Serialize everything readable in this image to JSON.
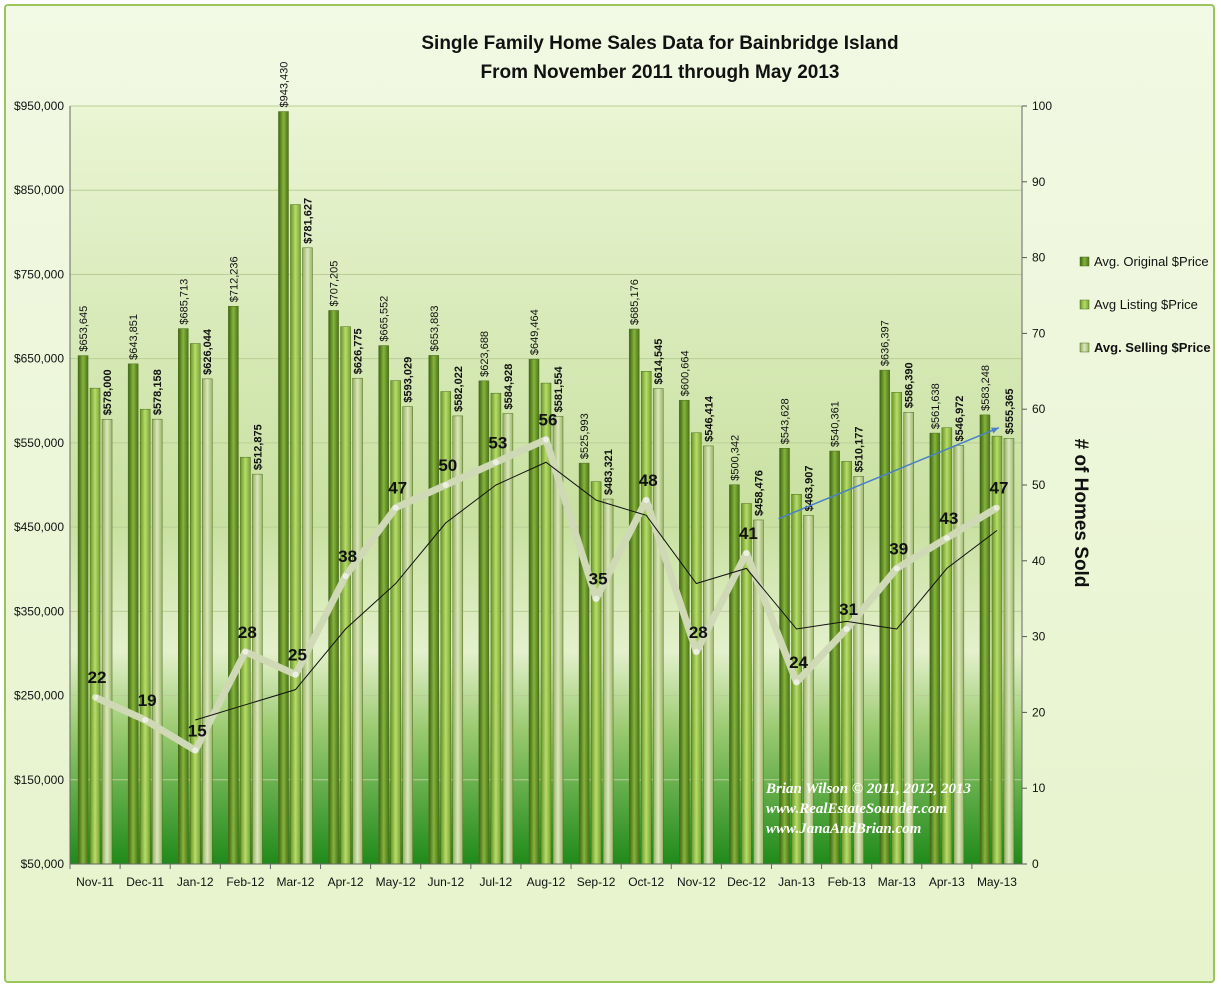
{
  "chart_data": {
    "type": "bar",
    "title": "Single Family Home Sales Data for Bainbridge Island",
    "subtitle": "From November 2011 through May 2013",
    "xlabel": "",
    "ylabel": "",
    "y2label": "# of Homes Sold",
    "ylim": [
      50000,
      950000
    ],
    "y2lim": [
      0,
      100
    ],
    "yticks": [
      "$50,000",
      "$150,000",
      "$250,000",
      "$350,000",
      "$450,000",
      "$550,000",
      "$650,000",
      "$750,000",
      "$850,000",
      "$950,000"
    ],
    "y2ticks": [
      "0",
      "10",
      "20",
      "30",
      "40",
      "50",
      "60",
      "70",
      "80",
      "90",
      "100"
    ],
    "categories": [
      "Nov-11",
      "Dec-11",
      "Jan-12",
      "Feb-12",
      "Mar-12",
      "Apr-12",
      "May-12",
      "Jun-12",
      "Jul-12",
      "Aug-12",
      "Sep-12",
      "Oct-12",
      "Nov-12",
      "Dec-12",
      "Jan-13",
      "Feb-13",
      "Mar-13",
      "Apr-13",
      "May-13"
    ],
    "series": [
      {
        "name": "Avg. Original $Price",
        "color": "#5e8a22",
        "values": [
          653645,
          643851,
          685713,
          712236,
          943430,
          707205,
          665552,
          653883,
          623688,
          649464,
          525993,
          685176,
          600664,
          500342,
          543628,
          540361,
          636397,
          561638,
          583248
        ],
        "labels": [
          "$653,645",
          "$643,851",
          "$685,713",
          "$712,236",
          "$943,430",
          "$707,205",
          "$665,552",
          "$653,883",
          "$623,688",
          "$649,464",
          "$525,993",
          "$685,176",
          "$600,664",
          "$500,342",
          "$543,628",
          "$540,361",
          "$636,397",
          "$561,638",
          "$583,248"
        ]
      },
      {
        "name": "Avg Listing $Price",
        "color": "#8cb83a",
        "values": [
          615000,
          590000,
          668000,
          533000,
          833000,
          688000,
          624000,
          611000,
          609000,
          621000,
          504000,
          635000,
          562000,
          478000,
          489000,
          528000,
          610000,
          568000,
          558000
        ],
        "labels": []
      },
      {
        "name": "Avg. Selling $Price",
        "color": "#b6cf82",
        "values": [
          578000,
          578158,
          626044,
          512875,
          781627,
          626775,
          593029,
          582022,
          584928,
          581554,
          483321,
          614545,
          546414,
          458476,
          463907,
          510177,
          586390,
          546972,
          555365
        ],
        "labels": [
          "$578,000",
          "$578,158",
          "$626,044",
          "$512,875",
          "$781,627",
          "$626,775",
          "$593,029",
          "$582,022",
          "$584,928",
          "$581,554",
          "$483,321",
          "$614,545",
          "$546,414",
          "$458,476",
          "$463,907",
          "$510,177",
          "$586,390",
          "$546,972",
          "$555,365"
        ]
      }
    ],
    "homes_sold": [
      22,
      19,
      15,
      28,
      25,
      38,
      47,
      50,
      53,
      56,
      35,
      48,
      28,
      41,
      24,
      31,
      39,
      43,
      47
    ],
    "homes_sold_trend": [
      null,
      null,
      19,
      21,
      23,
      31,
      37,
      45,
      50,
      53,
      48,
      46,
      37,
      39,
      31,
      32,
      31,
      39,
      44
    ],
    "trend_arrow": {
      "from": [
        "Jan-13",
        460000
      ],
      "to": [
        "May-13",
        568000
      ],
      "color": "#4a80c8"
    },
    "legend_position": "right",
    "grid": true,
    "colors": {
      "homes_line": "#cfd9b6",
      "trend_line": "#111111"
    }
  },
  "credits": [
    "Brian Wilson  © 2011, 2012, 2013",
    "www.RealEstateSounder.com",
    "www.JanaAndBrian.com"
  ]
}
